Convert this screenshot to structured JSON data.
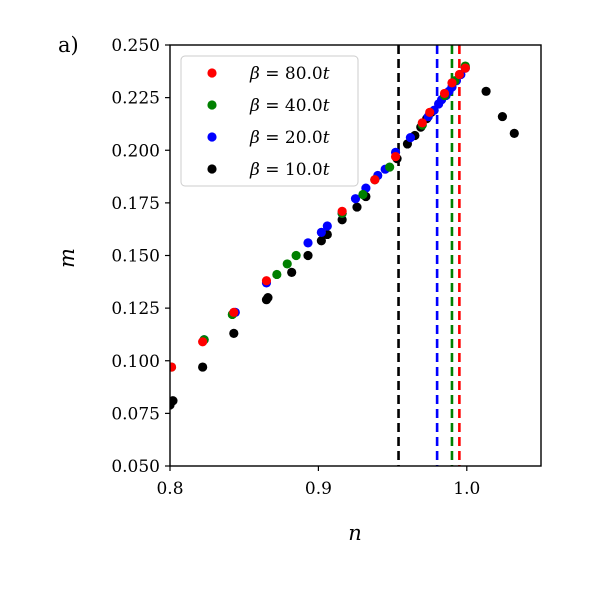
{
  "chart_data": {
    "type": "scatter",
    "panel_label": "a)",
    "xlabel": "n",
    "ylabel": "m",
    "xlim": [
      0.8,
      1.05
    ],
    "ylim": [
      0.05,
      0.25
    ],
    "xticks": [
      0.8,
      0.9,
      1.0
    ],
    "xtick_labels": [
      "0.8",
      "0.9",
      "1.0"
    ],
    "yticks": [
      0.05,
      0.075,
      0.1,
      0.125,
      0.15,
      0.175,
      0.2,
      0.225,
      0.25
    ],
    "ytick_labels": [
      "0.050",
      "0.075",
      "0.100",
      "0.125",
      "0.150",
      "0.175",
      "0.200",
      "0.225",
      "0.250"
    ],
    "grid": false,
    "legend_position": "top-left",
    "series": [
      {
        "name": "β = 80.0t",
        "legend_prefix": "β = ",
        "legend_value": "80.0",
        "legend_suffix": "t",
        "color": "#ff0000",
        "vline": 0.995,
        "points": [
          [
            0.801,
            0.097
          ],
          [
            0.822,
            0.109
          ],
          [
            0.843,
            0.123
          ],
          [
            0.865,
            0.138
          ],
          [
            0.916,
            0.171
          ],
          [
            0.938,
            0.186
          ],
          [
            0.952,
            0.197
          ],
          [
            0.97,
            0.213
          ],
          [
            0.975,
            0.218
          ],
          [
            0.985,
            0.227
          ],
          [
            0.99,
            0.232
          ],
          [
            0.995,
            0.236
          ],
          [
            0.999,
            0.239
          ]
        ]
      },
      {
        "name": "β = 40.0t",
        "legend_prefix": "β = ",
        "legend_value": "40.0",
        "legend_suffix": "t",
        "color": "#008000",
        "vline": 0.99,
        "points": [
          [
            0.801,
            0.097
          ],
          [
            0.823,
            0.11
          ],
          [
            0.842,
            0.122
          ],
          [
            0.872,
            0.141
          ],
          [
            0.879,
            0.146
          ],
          [
            0.885,
            0.15
          ],
          [
            0.916,
            0.17
          ],
          [
            0.93,
            0.179
          ],
          [
            0.938,
            0.186
          ],
          [
            0.948,
            0.192
          ],
          [
            0.97,
            0.212
          ],
          [
            0.985,
            0.226
          ],
          [
            0.992,
            0.233
          ],
          [
            0.999,
            0.24
          ]
        ]
      },
      {
        "name": "β = 20.0t",
        "legend_prefix": "β = ",
        "legend_value": "20.0",
        "legend_suffix": "t",
        "color": "#0000ff",
        "vline": 0.98,
        "points": [
          [
            0.8,
            0.097
          ],
          [
            0.823,
            0.11
          ],
          [
            0.844,
            0.123
          ],
          [
            0.865,
            0.137
          ],
          [
            0.893,
            0.156
          ],
          [
            0.902,
            0.161
          ],
          [
            0.906,
            0.164
          ],
          [
            0.916,
            0.17
          ],
          [
            0.925,
            0.177
          ],
          [
            0.932,
            0.182
          ],
          [
            0.94,
            0.188
          ],
          [
            0.945,
            0.191
          ],
          [
            0.952,
            0.199
          ],
          [
            0.962,
            0.206
          ],
          [
            0.974,
            0.216
          ],
          [
            0.978,
            0.219
          ],
          [
            0.981,
            0.222
          ],
          [
            0.983,
            0.224
          ],
          [
            0.986,
            0.226
          ],
          [
            0.988,
            0.228
          ],
          [
            0.99,
            0.23
          ],
          [
            0.993,
            0.233
          ],
          [
            0.996,
            0.236
          ],
          [
            0.999,
            0.239
          ]
        ]
      },
      {
        "name": "β = 10.0t",
        "legend_prefix": "β = ",
        "legend_value": "10.0",
        "legend_suffix": "t",
        "color": "#000000",
        "vline": 0.954,
        "points": [
          [
            0.8,
            0.079
          ],
          [
            0.802,
            0.081
          ],
          [
            0.822,
            0.097
          ],
          [
            0.843,
            0.113
          ],
          [
            0.865,
            0.129
          ],
          [
            0.866,
            0.13
          ],
          [
            0.882,
            0.142
          ],
          [
            0.893,
            0.15
          ],
          [
            0.902,
            0.157
          ],
          [
            0.906,
            0.16
          ],
          [
            0.916,
            0.167
          ],
          [
            0.926,
            0.173
          ],
          [
            0.932,
            0.178
          ],
          [
            0.953,
            0.196
          ],
          [
            0.96,
            0.203
          ],
          [
            0.965,
            0.207
          ],
          [
            0.969,
            0.211
          ],
          [
            0.973,
            0.215
          ],
          [
            0.976,
            0.218
          ],
          [
            1.013,
            0.228
          ],
          [
            1.024,
            0.216
          ],
          [
            1.032,
            0.208
          ]
        ]
      }
    ]
  }
}
